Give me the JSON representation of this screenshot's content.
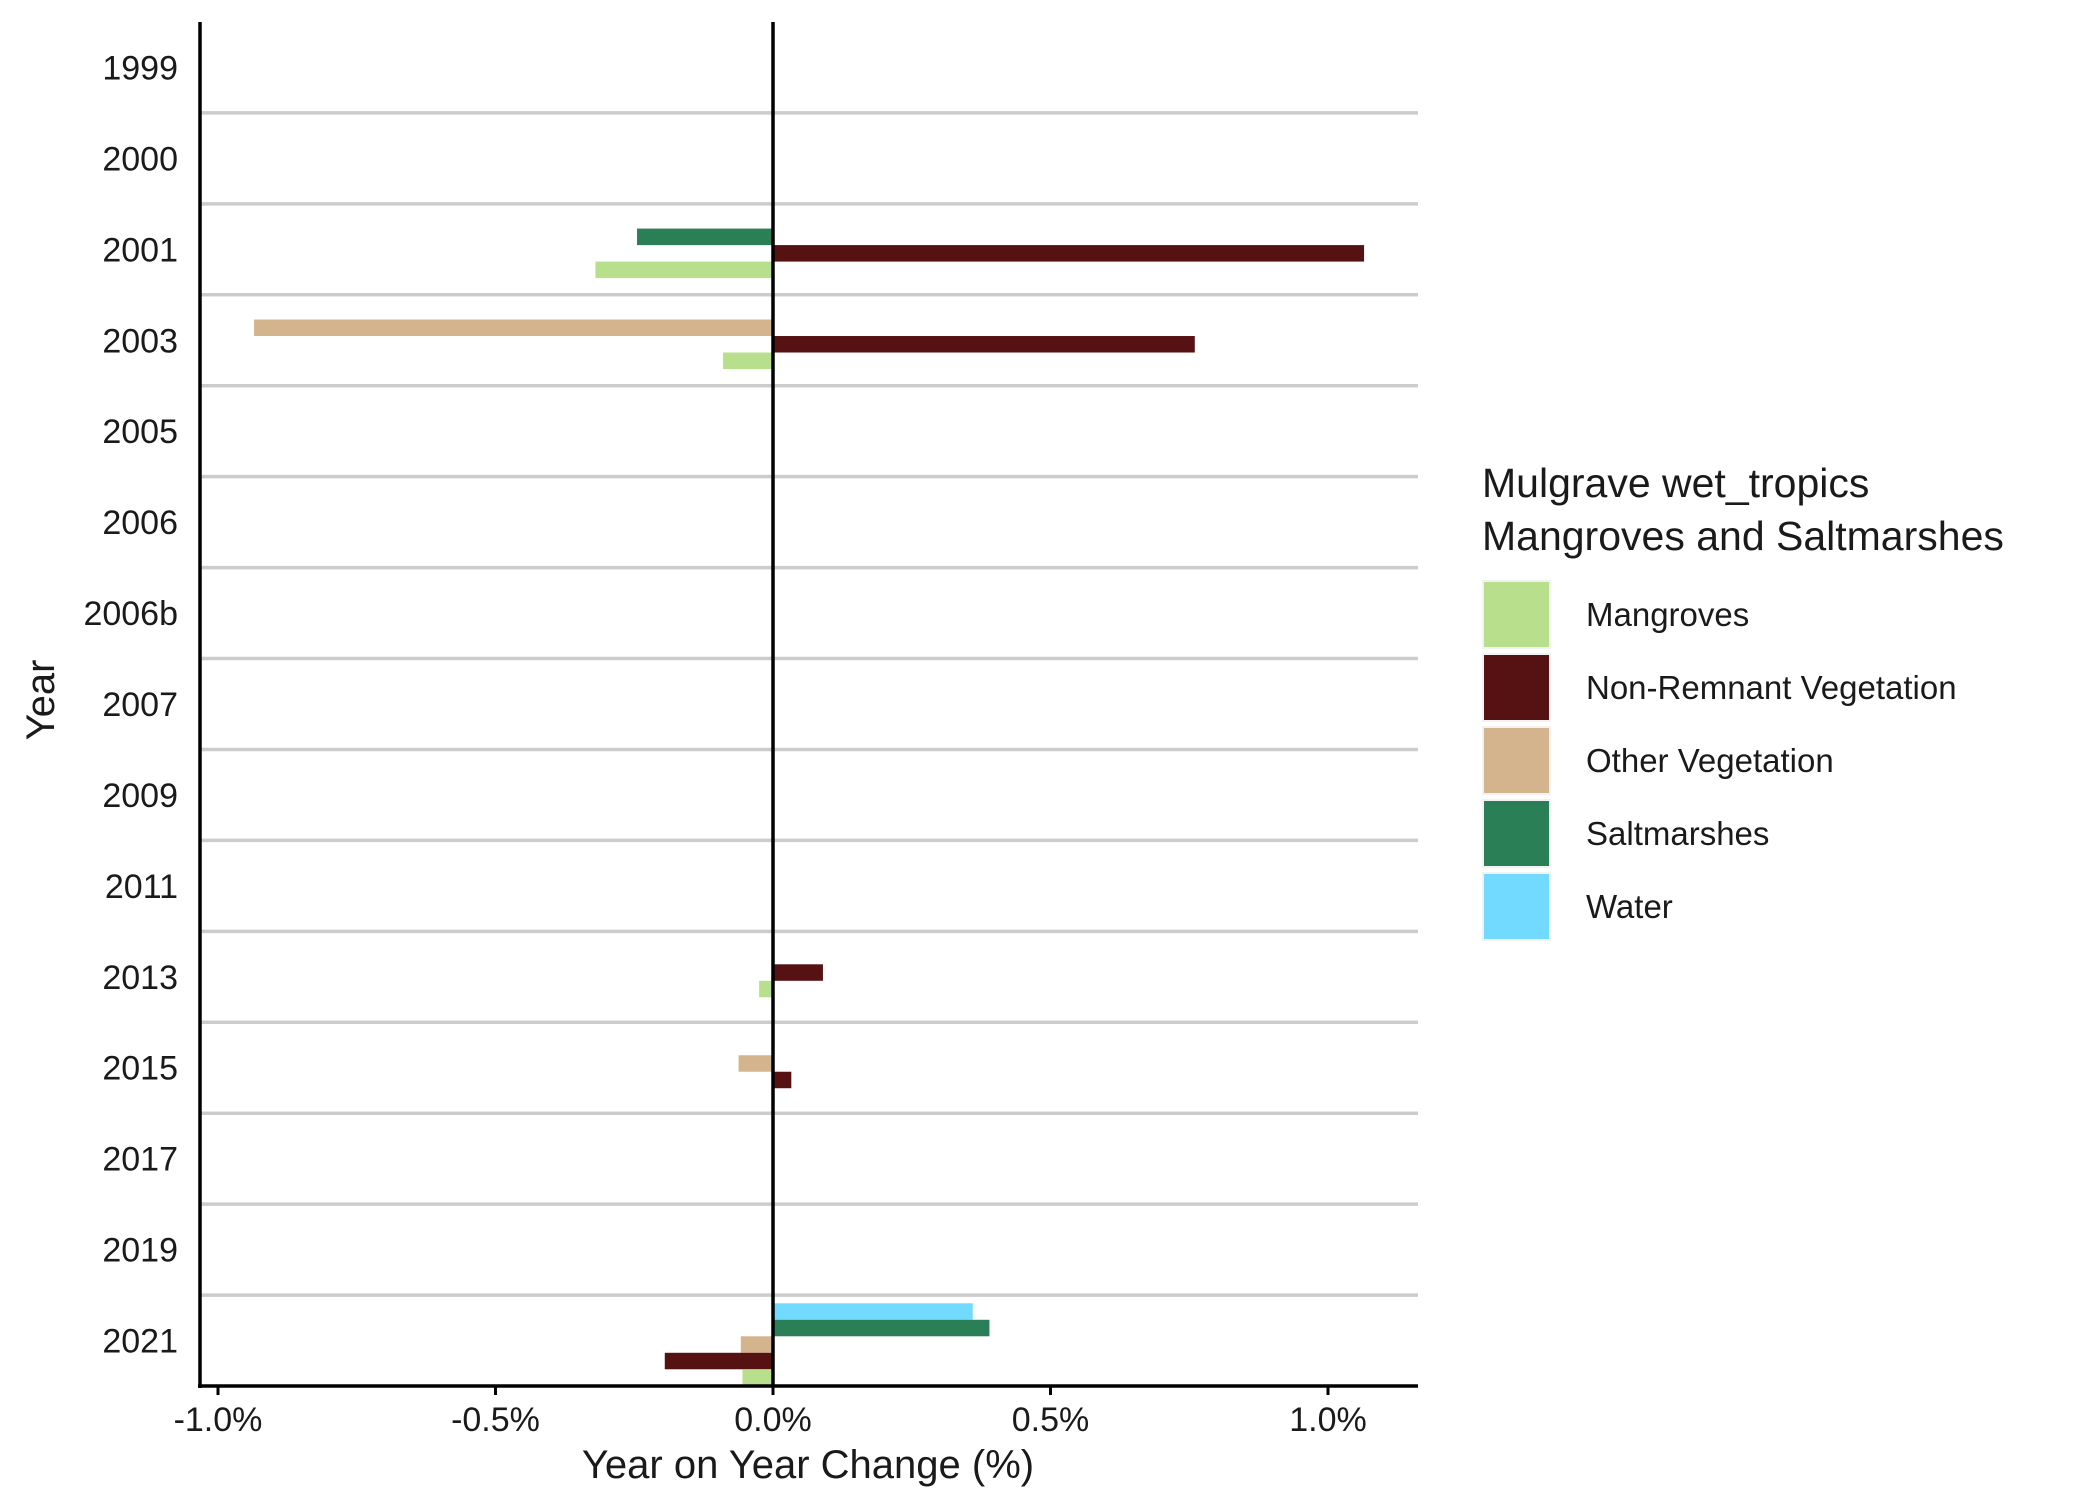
{
  "chart_data": {
    "type": "bar",
    "orientation": "horizontal",
    "xlabel": "Year on Year Change (%)",
    "ylabel": "Year",
    "xlim": [
      -1.03,
      1.16
    ],
    "xticks": [
      -1.0,
      -0.5,
      0.0,
      0.5,
      1.0
    ],
    "xtick_labels": [
      "-1.0%",
      "-0.5%",
      "0.0%",
      "0.5%",
      "1.0%"
    ],
    "grid": "horizontal separators between years",
    "legend_position": "right",
    "legend_title_lines": [
      "Mulgrave wet_tropics",
      "Mangroves and Saltmarshes"
    ],
    "categories": [
      "1999",
      "2000",
      "2001",
      "2003",
      "2005",
      "2006",
      "2006b",
      "2007",
      "2009",
      "2011",
      "2013",
      "2015",
      "2017",
      "2019",
      "2021"
    ],
    "series": [
      {
        "name": "Mangroves",
        "color": "#B8DF8C",
        "values": [
          null,
          null,
          -0.32,
          -0.09,
          null,
          null,
          null,
          null,
          null,
          null,
          -0.025,
          null,
          null,
          null,
          -0.055
        ]
      },
      {
        "name": "Non-Remnant Vegetation",
        "color": "#561213",
        "values": [
          null,
          null,
          1.065,
          0.76,
          null,
          null,
          null,
          null,
          null,
          null,
          0.09,
          0.033,
          null,
          null,
          -0.195
        ]
      },
      {
        "name": "Other Vegetation",
        "color": "#D4B48C",
        "values": [
          null,
          null,
          null,
          -0.935,
          null,
          null,
          null,
          null,
          null,
          null,
          null,
          -0.062,
          null,
          null,
          -0.058
        ]
      },
      {
        "name": "Saltmarshes",
        "color": "#2A7F57",
        "values": [
          null,
          null,
          -0.245,
          null,
          null,
          null,
          null,
          null,
          null,
          null,
          null,
          null,
          null,
          null,
          0.39
        ]
      },
      {
        "name": "Water",
        "color": "#73DAFF",
        "values": [
          null,
          null,
          null,
          null,
          null,
          null,
          null,
          null,
          null,
          null,
          null,
          null,
          null,
          null,
          0.36
        ]
      }
    ]
  }
}
